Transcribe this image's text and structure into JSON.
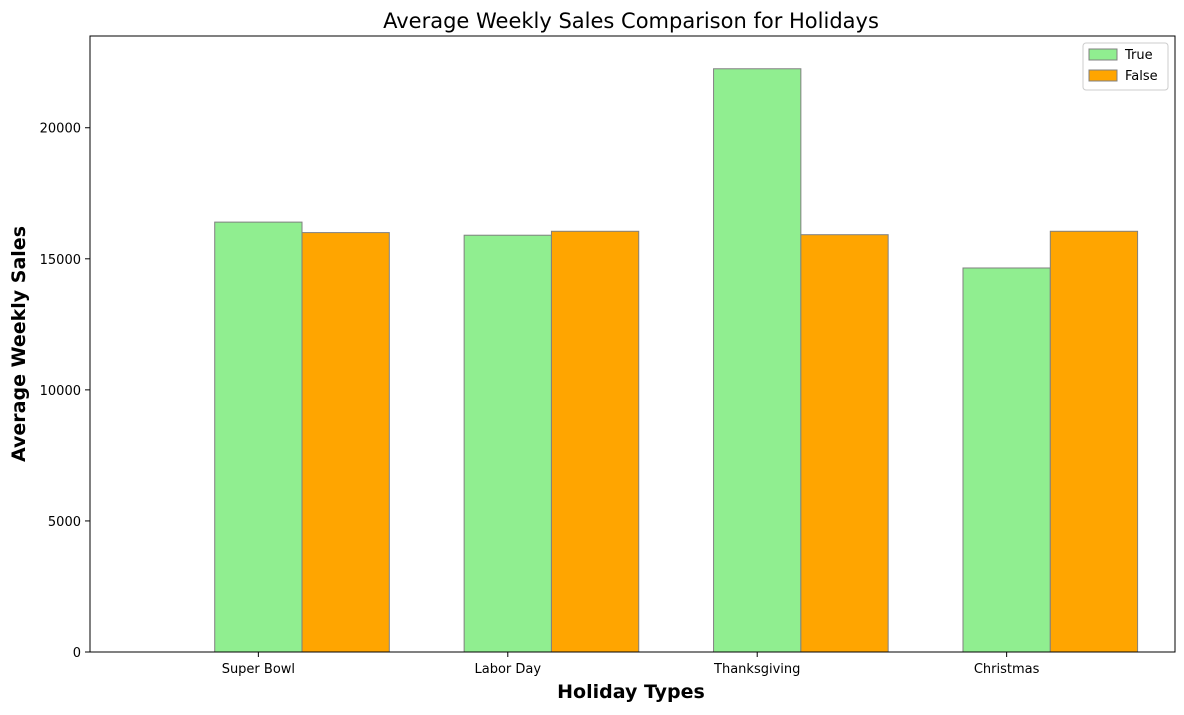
{
  "chart_data": {
    "type": "bar",
    "title": "Average Weekly Sales Comparison for Holidays",
    "xlabel": "Holiday Types",
    "ylabel": "Average Weekly Sales",
    "categories": [
      "Super Bowl",
      "Labor Day",
      "Thanksgiving",
      "Christmas"
    ],
    "series": [
      {
        "name": "True",
        "values": [
          16400,
          15900,
          22250,
          14650
        ],
        "color": "#90ee90"
      },
      {
        "name": "False",
        "values": [
          16000,
          16050,
          15920,
          16050
        ],
        "color": "#ffa500"
      }
    ],
    "bar_edge_color": "#808080",
    "ylim": [
      0,
      23500
    ],
    "yticks": [
      0,
      5000,
      10000,
      15000,
      20000
    ],
    "grid": false,
    "legend_position": "top-right"
  }
}
